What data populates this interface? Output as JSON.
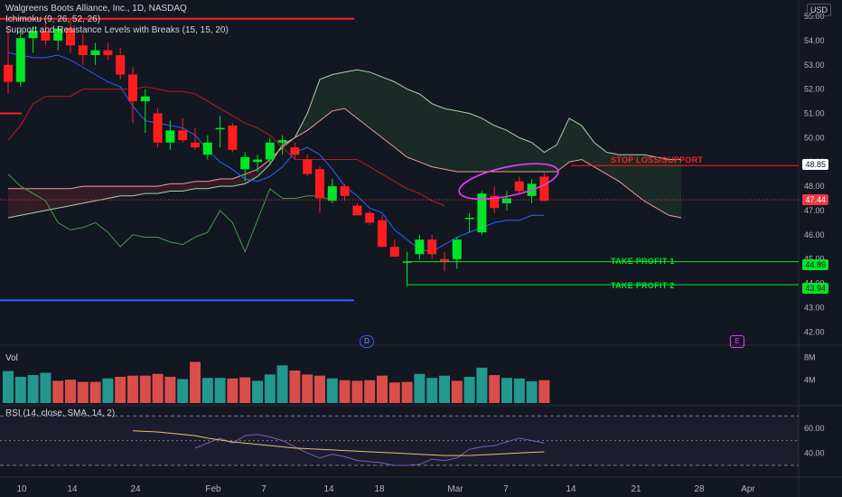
{
  "header": {
    "title": "Walgreens Boots Alliance, Inc., 1D, NASDAQ",
    "ichimoku": "Ichimoku (9, 26, 52, 26)",
    "sr": "Support and Resistance Levels with Breaks (15, 15, 20)",
    "currency": "USD"
  },
  "volume_label": "Vol",
  "rsi_label": "RSI (14, close, SMA, 14, 2)",
  "markers": {
    "dividend": "D",
    "earnings": "E"
  },
  "levels": {
    "stop": {
      "label": "STOP LOSS/SUPPORT",
      "price_text": "48.85",
      "color": "#ff1d1d"
    },
    "tp1": {
      "label": "TAKE PROFIT 1",
      "price_text": "44.89",
      "color": "#00e626"
    },
    "tp2": {
      "label": "TAKE PROFIT 2",
      "price_text": "43.94",
      "color": "#00e626"
    },
    "current": {
      "price_text": "47.44",
      "color": "#f23645"
    }
  },
  "colors": {
    "up": "#00e626",
    "down": "#ff1d1d",
    "vol_up": "#26a69a",
    "vol_down": "#ef5350",
    "background": "#131722"
  },
  "chart_data": {
    "type": "candlestick",
    "title": "Walgreens Boots Alliance, Inc., 1D, NASDAQ",
    "y_ticks": [
      "55.00",
      "54.00",
      "53.00",
      "52.00",
      "51.00",
      "50.00",
      "49.00",
      "48.00",
      "47.00",
      "46.00",
      "45.00",
      "44.00",
      "43.00",
      "42.00"
    ],
    "x_labels": [
      "10",
      "14",
      "24",
      "Feb",
      "7",
      "14",
      "18",
      "Mar",
      "7",
      "14",
      "21",
      "28",
      "Apr"
    ],
    "ylim": [
      41.6,
      55.3
    ],
    "candles": [
      [
        53.0,
        54.6,
        51.8,
        52.3
      ],
      [
        52.3,
        54.5,
        52.1,
        54.1
      ],
      [
        54.1,
        54.6,
        53.5,
        54.4
      ],
      [
        54.4,
        54.8,
        53.8,
        54.0
      ],
      [
        54.0,
        54.6,
        53.6,
        54.5
      ],
      [
        54.5,
        54.9,
        53.5,
        53.8
      ],
      [
        53.8,
        54.3,
        53.0,
        53.4
      ],
      [
        53.4,
        53.9,
        53.0,
        53.6
      ],
      [
        53.6,
        53.9,
        53.2,
        53.4
      ],
      [
        53.4,
        53.7,
        52.4,
        52.6
      ],
      [
        52.6,
        52.9,
        50.6,
        51.5
      ],
      [
        51.5,
        52.0,
        50.2,
        51.7
      ],
      [
        51.0,
        51.2,
        49.6,
        49.8
      ],
      [
        49.8,
        50.7,
        49.5,
        50.3
      ],
      [
        50.3,
        50.8,
        49.8,
        49.9
      ],
      [
        49.8,
        50.4,
        49.5,
        49.6
      ],
      [
        49.3,
        50.1,
        49.1,
        49.8
      ],
      [
        50.4,
        50.9,
        49.6,
        50.4
      ],
      [
        50.5,
        50.6,
        49.4,
        49.5
      ],
      [
        48.7,
        49.4,
        48.2,
        49.2
      ],
      [
        49.0,
        49.3,
        48.6,
        49.1
      ],
      [
        49.1,
        50.0,
        48.9,
        49.8
      ],
      [
        49.8,
        50.1,
        49.3,
        49.9
      ],
      [
        49.6,
        49.8,
        49.1,
        49.3
      ],
      [
        49.1,
        49.3,
        48.4,
        48.5
      ],
      [
        48.7,
        48.8,
        46.9,
        47.5
      ],
      [
        47.4,
        48.3,
        47.3,
        48.0
      ],
      [
        48.0,
        48.1,
        47.4,
        47.6
      ],
      [
        47.2,
        47.3,
        46.8,
        46.8
      ],
      [
        46.9,
        47.0,
        46.4,
        46.5
      ],
      [
        46.6,
        46.8,
        45.5,
        45.5
      ],
      [
        45.5,
        45.8,
        45.1,
        45.1
      ],
      [
        44.9,
        45.3,
        43.9,
        44.9
      ],
      [
        45.2,
        46.0,
        45.0,
        45.8
      ],
      [
        45.8,
        46.0,
        45.0,
        45.2
      ],
      [
        45.0,
        45.3,
        44.5,
        44.9
      ],
      [
        45.0,
        45.9,
        44.6,
        45.8
      ],
      [
        46.7,
        46.9,
        46.1,
        46.7
      ],
      [
        46.1,
        47.8,
        46.0,
        47.7
      ],
      [
        47.6,
        48.0,
        46.9,
        47.1
      ],
      [
        47.3,
        47.8,
        47.0,
        47.5
      ],
      [
        48.2,
        48.4,
        47.7,
        47.8
      ],
      [
        47.6,
        48.3,
        47.3,
        48.1
      ],
      [
        48.4,
        48.6,
        47.4,
        47.4
      ]
    ],
    "volume": [
      [
        1,
        5.6
      ],
      [
        1,
        4.6
      ],
      [
        1,
        4.9
      ],
      [
        1,
        5.3
      ],
      [
        0,
        3.9
      ],
      [
        0,
        4.1
      ],
      [
        0,
        3.7
      ],
      [
        0,
        3.7
      ],
      [
        1,
        4.3
      ],
      [
        0,
        4.6
      ],
      [
        0,
        4.8
      ],
      [
        0,
        4.8
      ],
      [
        0,
        5.1
      ],
      [
        0,
        4.6
      ],
      [
        1,
        4.2
      ],
      [
        0,
        7.2
      ],
      [
        1,
        4.4
      ],
      [
        1,
        4.4
      ],
      [
        0,
        4.3
      ],
      [
        0,
        4.5
      ],
      [
        1,
        3.9
      ],
      [
        1,
        5.0
      ],
      [
        1,
        6.6
      ],
      [
        0,
        5.7
      ],
      [
        0,
        5.0
      ],
      [
        0,
        4.8
      ],
      [
        1,
        4.3
      ],
      [
        0,
        4.0
      ],
      [
        0,
        3.9
      ],
      [
        0,
        4.0
      ],
      [
        0,
        4.8
      ],
      [
        0,
        3.6
      ],
      [
        0,
        3.7
      ],
      [
        1,
        5.1
      ],
      [
        1,
        4.4
      ],
      [
        1,
        4.8
      ],
      [
        0,
        3.9
      ],
      [
        1,
        4.6
      ],
      [
        1,
        6.2
      ],
      [
        0,
        4.9
      ],
      [
        1,
        4.4
      ],
      [
        1,
        4.3
      ],
      [
        1,
        3.8
      ],
      [
        0,
        4.0
      ]
    ],
    "volume_ticks": [
      "8M",
      "4M"
    ],
    "rsi_ticks": [
      "60.00",
      "40.00"
    ],
    "rsi_bounds": [
      70,
      30
    ],
    "rsi": [
      null,
      null,
      null,
      null,
      null,
      null,
      null,
      null,
      null,
      null,
      null,
      null,
      null,
      null,
      null,
      44,
      48,
      52,
      48,
      54,
      55,
      53,
      50,
      45,
      40,
      36,
      39,
      37,
      34,
      33,
      32,
      30,
      30,
      31,
      35,
      34,
      36,
      43,
      45,
      46,
      49,
      52,
      50,
      48
    ],
    "rsi_ma": [
      null,
      null,
      null,
      null,
      null,
      null,
      null,
      null,
      null,
      null,
      58,
      57.5,
      57,
      56,
      55,
      54,
      52,
      50.5,
      49,
      48,
      47,
      46,
      45,
      44,
      43.5,
      43,
      42.5,
      42,
      41.5,
      41,
      40.5,
      40,
      39.5,
      39,
      38.5,
      38,
      38,
      38,
      38.5,
      39,
      39.5,
      40,
      40.5,
      41
    ],
    "tenkan": [
      53.5,
      53.4,
      53.3,
      53.3,
      53.4,
      53.2,
      52.9,
      52.6,
      52.3,
      52.1,
      51.3,
      50.7,
      50.6,
      50.5,
      50.4,
      50.1,
      49.5,
      49.0,
      48.7,
      48.3,
      48.2,
      48.4,
      48.8,
      49.4,
      49.6,
      49.3,
      48.7,
      48.0,
      47.6,
      47.1,
      46.9,
      46.2,
      45.8,
      45.4,
      45.3,
      45.6,
      45.9,
      46.1,
      46.3,
      46.5,
      46.6,
      46.6,
      46.8,
      46.8
    ],
    "kijun": [
      49.9,
      50.5,
      51.4,
      51.7,
      51.7,
      51.7,
      52.0,
      52.0,
      52.0,
      52.0,
      52.0,
      52.1,
      52.0,
      51.9,
      51.9,
      51.8,
      51.5,
      51.2,
      50.9,
      50.6,
      50.4,
      50.1,
      49.6,
      49.1,
      49.1,
      49.1,
      49.1,
      49.1,
      49.1,
      48.8,
      48.5,
      48.2,
      47.9,
      47.7,
      47.4,
      47.2
    ],
    "span_a": [
      46.7,
      46.8,
      46.9,
      47.0,
      47.1,
      47.2,
      47.3,
      47.4,
      47.5,
      47.6,
      47.6,
      47.7,
      47.7,
      47.8,
      47.8,
      47.9,
      47.9,
      48.0,
      48.0,
      48.1,
      48.4,
      48.9,
      49.7,
      50.0,
      51.0,
      52.4,
      52.6,
      52.7,
      52.8,
      52.7,
      52.5,
      52.3,
      52.0,
      51.8,
      51.4,
      51.2,
      51.1,
      51.0,
      50.8,
      50.5,
      50.3,
      50.0,
      49.8,
      49.4,
      49.7,
      50.8,
      50.5,
      49.8,
      49.4,
      49.3,
      49.3,
      49.3,
      49.2,
      49.1,
      49.1
    ],
    "span_b": [
      47.9,
      47.9,
      47.9,
      47.9,
      47.9,
      47.9,
      48.0,
      48.0,
      48.0,
      48.0,
      48.0,
      48.0,
      48.0,
      48.1,
      48.1,
      48.2,
      48.2,
      48.3,
      48.3,
      48.5,
      48.7,
      49.1,
      49.6,
      50.0,
      50.3,
      50.7,
      51.1,
      51.2,
      50.8,
      50.4,
      50.0,
      49.6,
      49.2,
      49.0,
      48.8,
      48.7,
      48.6,
      48.6,
      48.6,
      48.6,
      48.6,
      48.6,
      48.6,
      48.6,
      48.6,
      49.0,
      49.1,
      48.8,
      48.5,
      48.2,
      47.8,
      47.4,
      47.1,
      46.8,
      46.7
    ],
    "chikou": [
      48.5,
      48.0,
      47.7,
      47.4,
      46.5,
      46.2,
      46.3,
      46.5,
      46.1,
      45.5,
      46.0,
      45.9,
      45.9,
      45.7,
      45.6,
      45.9,
      46.1,
      47.0,
      46.5,
      45.3,
      46.6,
      47.9,
      47.5,
      47.5,
      47.6,
      47.6,
      47.4
    ],
    "cloud_x_start": 0,
    "annotations": [
      "STOP LOSS/SUPPORT",
      "TAKE PROFIT 1",
      "TAKE PROFIT 2"
    ]
  }
}
